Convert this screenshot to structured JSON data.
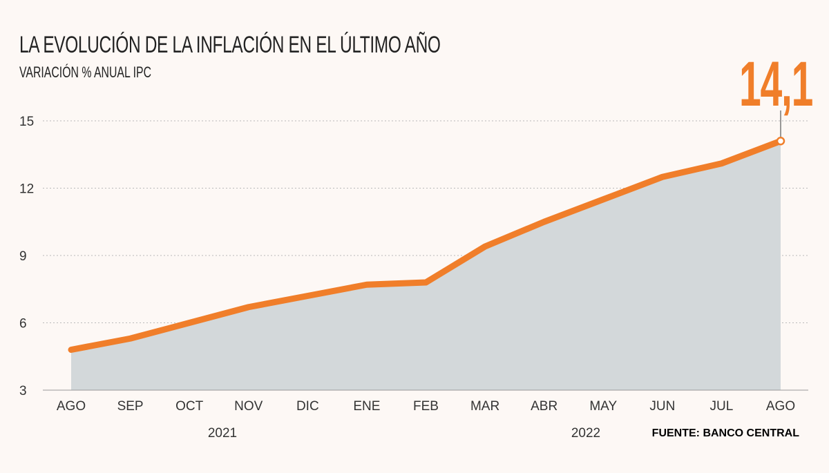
{
  "chart_data": {
    "type": "area",
    "title": "LA EVOLUCIÓN DE LA INFLACIÓN EN EL ÚLTIMO AÑO",
    "subtitle": "VARIACIÓN % ANUAL IPC",
    "categories": [
      "AGO",
      "SEP",
      "OCT",
      "NOV",
      "DIC",
      "ENE",
      "FEB",
      "MAR",
      "ABR",
      "MAY",
      "JUN",
      "JUL",
      "AGO"
    ],
    "year_labels": [
      "2021",
      "2022"
    ],
    "values": [
      4.8,
      5.3,
      6.0,
      6.7,
      7.2,
      7.7,
      7.8,
      9.4,
      10.5,
      11.5,
      12.5,
      13.1,
      14.1
    ],
    "highlight_label": "14,1",
    "yticks": [
      "3",
      "6",
      "9",
      "12",
      "15"
    ],
    "ylim": [
      3,
      15
    ],
    "grid": true,
    "source": "FUENTE: BANCO CENTRAL",
    "colors": {
      "line": "#f07e2a",
      "fill": "#d3d8da",
      "background": "#fdf8f5"
    }
  }
}
